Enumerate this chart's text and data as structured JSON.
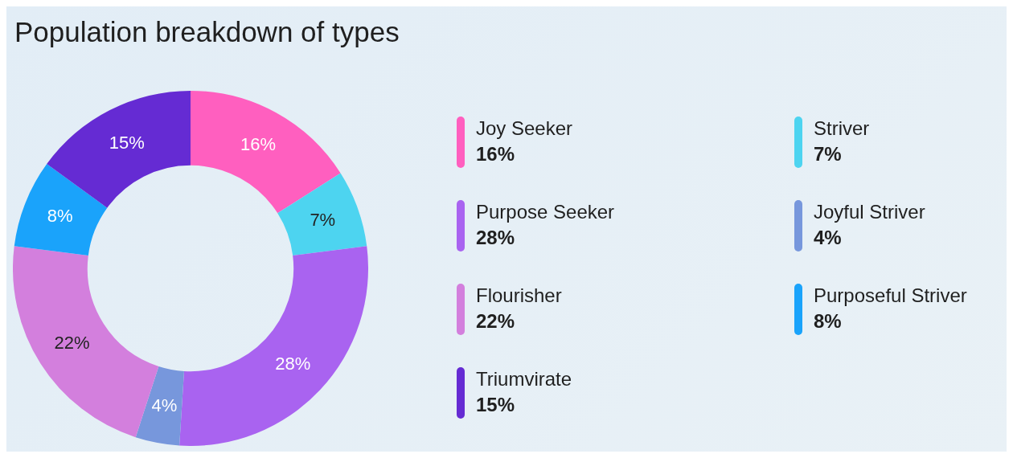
{
  "chart_data": {
    "type": "donut",
    "title": "Population breakdown of types",
    "categories": [
      "Joy Seeker",
      "Striver",
      "Purpose Seeker",
      "Joyful Striver",
      "Flourisher",
      "Purposeful Striver",
      "Triumvirate"
    ],
    "values": [
      16,
      7,
      28,
      4,
      22,
      8,
      15
    ],
    "colors": [
      "#ff5fbf",
      "#4dd4f0",
      "#a963f0",
      "#7797dc",
      "#d37fdd",
      "#1aa3fb",
      "#652bd3"
    ],
    "value_labels": [
      "16%",
      "7%",
      "28%",
      "4%",
      "22%",
      "8%",
      "15%"
    ],
    "legend": "right"
  }
}
